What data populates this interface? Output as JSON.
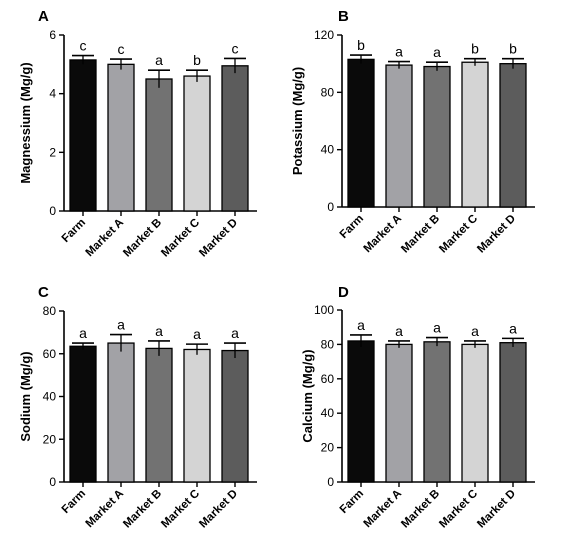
{
  "categories": [
    "Farm",
    "Market A",
    "Market B",
    "Market C",
    "Market D"
  ],
  "bar_colors": [
    "#0a0a0a",
    "#a2a2a6",
    "#727272",
    "#d4d4d4",
    "#5c5c5c"
  ],
  "chart_data": [
    {
      "type": "bar",
      "panel": "A",
      "ylabel": "Magnessium (Mg/g)",
      "ylim": [
        0,
        6
      ],
      "yticks": [
        0,
        2,
        4,
        6
      ],
      "categories": [
        "Farm",
        "Market A",
        "Market B",
        "Market C",
        "Market D"
      ],
      "values": [
        5.15,
        5.0,
        4.5,
        4.6,
        4.95
      ],
      "errors": [
        0.15,
        0.18,
        0.3,
        0.2,
        0.25
      ],
      "letters": [
        "c",
        "c",
        "a",
        "b",
        "c"
      ]
    },
    {
      "type": "bar",
      "panel": "B",
      "ylabel": "Potassium (Mg/g)",
      "ylim": [
        0,
        120
      ],
      "yticks": [
        0,
        40,
        80,
        120
      ],
      "categories": [
        "Farm",
        "Market A",
        "Market B",
        "Market C",
        "Market D"
      ],
      "values": [
        103,
        99,
        98,
        101,
        100
      ],
      "errors": [
        3,
        2.5,
        3,
        2.5,
        3.5
      ],
      "letters": [
        "b",
        "a",
        "a",
        "b",
        "b"
      ]
    },
    {
      "type": "bar",
      "panel": "C",
      "ylabel": "Sodium (Mg/g)",
      "ylim": [
        0,
        80
      ],
      "yticks": [
        0,
        20,
        40,
        60,
        80
      ],
      "categories": [
        "Farm",
        "Market A",
        "Market B",
        "Market C",
        "Market D"
      ],
      "values": [
        63.5,
        65,
        62.5,
        62,
        61.5
      ],
      "errors": [
        1.5,
        4,
        3.5,
        2.5,
        3.5
      ],
      "letters": [
        "a",
        "a",
        "a",
        "a",
        "a"
      ]
    },
    {
      "type": "bar",
      "panel": "D",
      "ylabel": "Calcium (Mg/g)",
      "ylim": [
        0,
        100
      ],
      "yticks": [
        0,
        20,
        40,
        60,
        80,
        100
      ],
      "categories": [
        "Farm",
        "Market A",
        "Market B",
        "Market C",
        "Market D"
      ],
      "values": [
        82,
        80,
        81.5,
        80,
        81
      ],
      "errors": [
        3.5,
        2,
        2.5,
        2,
        2.5
      ],
      "letters": [
        "a",
        "a",
        "a",
        "a",
        "a"
      ]
    }
  ]
}
